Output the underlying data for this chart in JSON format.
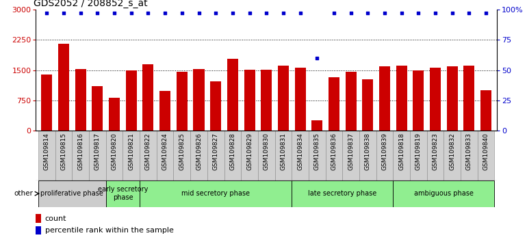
{
  "title": "GDS2052 / 208852_s_at",
  "samples": [
    "GSM109814",
    "GSM109815",
    "GSM109816",
    "GSM109817",
    "GSM109820",
    "GSM109821",
    "GSM109822",
    "GSM109824",
    "GSM109825",
    "GSM109826",
    "GSM109827",
    "GSM109828",
    "GSM109829",
    "GSM109830",
    "GSM109831",
    "GSM109834",
    "GSM109835",
    "GSM109836",
    "GSM109837",
    "GSM109838",
    "GSM109839",
    "GSM109818",
    "GSM109819",
    "GSM109823",
    "GSM109832",
    "GSM109833",
    "GSM109840"
  ],
  "counts": [
    1400,
    2150,
    1530,
    1100,
    820,
    1490,
    1640,
    980,
    1460,
    1530,
    1220,
    1790,
    1510,
    1510,
    1620,
    1560,
    250,
    1320,
    1460,
    1270,
    1590,
    1620,
    1490,
    1560,
    1590,
    1620,
    1000
  ],
  "percentile_ranks": [
    97,
    97,
    97,
    97,
    97,
    97,
    97,
    97,
    97,
    97,
    97,
    97,
    97,
    97,
    97,
    97,
    60,
    97,
    97,
    97,
    97,
    97,
    97,
    97,
    97,
    97,
    97
  ],
  "bar_color": "#cc0000",
  "dot_color": "#0000cc",
  "ylim_left": [
    0,
    3000
  ],
  "ylim_right": [
    0,
    100
  ],
  "yticks_left": [
    0,
    750,
    1500,
    2250,
    3000
  ],
  "yticks_right": [
    0,
    25,
    50,
    75,
    100
  ],
  "grid_lines": [
    750,
    1500,
    2250
  ],
  "phases": [
    {
      "label": "proliferative phase",
      "start": 0,
      "end": 4,
      "color": "#cccccc"
    },
    {
      "label": "early secretory\nphase",
      "start": 4,
      "end": 6,
      "color": "#90ee90"
    },
    {
      "label": "mid secretory phase",
      "start": 6,
      "end": 15,
      "color": "#90ee90"
    },
    {
      "label": "late secretory phase",
      "start": 15,
      "end": 21,
      "color": "#90ee90"
    },
    {
      "label": "ambiguous phase",
      "start": 21,
      "end": 27,
      "color": "#90ee90"
    }
  ],
  "tick_bg_color": "#d0d0d0",
  "tick_border_color": "#888888",
  "bar_border_color": "#888888",
  "other_label": "other",
  "legend_count_label": "count",
  "legend_pct_label": "percentile rank within the sample",
  "title_fontsize": 10,
  "bar_fontsize": 6.5,
  "phase_fontsize": 7,
  "legend_fontsize": 8
}
